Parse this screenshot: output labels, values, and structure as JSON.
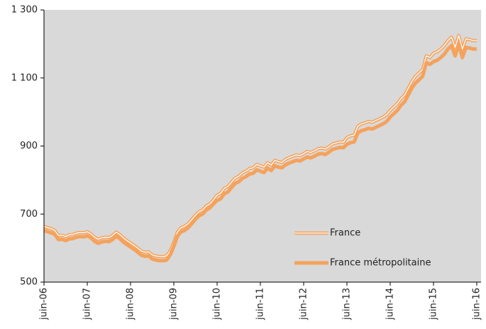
{
  "chart_data": {
    "type": "line",
    "categories": [
      "juin-06",
      null,
      null,
      null,
      null,
      null,
      null,
      null,
      null,
      null,
      null,
      null,
      "juin-07",
      null,
      null,
      null,
      null,
      null,
      null,
      null,
      null,
      null,
      null,
      null,
      "juin-08",
      null,
      null,
      null,
      null,
      null,
      null,
      null,
      null,
      null,
      null,
      null,
      "juin-09",
      null,
      null,
      null,
      null,
      null,
      null,
      null,
      null,
      null,
      null,
      null,
      "juin-10",
      null,
      null,
      null,
      null,
      null,
      null,
      null,
      null,
      null,
      null,
      null,
      "juin-11",
      null,
      null,
      null,
      null,
      null,
      null,
      null,
      null,
      null,
      null,
      null,
      "juin-12",
      null,
      null,
      null,
      null,
      null,
      null,
      null,
      null,
      null,
      null,
      null,
      "juin-13",
      null,
      null,
      null,
      null,
      null,
      null,
      null,
      null,
      null,
      null,
      null,
      "juin-14",
      null,
      null,
      null,
      null,
      null,
      null,
      null,
      null,
      null,
      null,
      null,
      "juin-15",
      null,
      null,
      null,
      null,
      null,
      null,
      null,
      null,
      null,
      null,
      null,
      "juin-16"
    ],
    "series": [
      {
        "name": "France",
        "color": "#f5a25d",
        "style": "double",
        "values": [
          664,
          660,
          657,
          652,
          637,
          638,
          634,
          639,
          640,
          644,
          646,
          645,
          648,
          642,
          632,
          626,
          630,
          632,
          631,
          637,
          647,
          640,
          630,
          622,
          615,
          608,
          600,
          591,
          588,
          589,
          580,
          577,
          575,
          575,
          577,
          592,
          617,
          647,
          660,
          664,
          672,
          684,
          697,
          707,
          712,
          724,
          730,
          742,
          756,
          761,
          776,
          781,
          794,
          806,
          811,
          821,
          826,
          834,
          836,
          846,
          842,
          838,
          851,
          844,
          858,
          854,
          852,
          861,
          866,
          870,
          874,
          872,
          878,
          884,
          881,
          886,
          892,
          894,
          891,
          898,
          906,
          909,
          912,
          911,
          925,
          930,
          932,
          958,
          965,
          968,
          972,
          970,
          975,
          980,
          985,
          992,
          1005,
          1015,
          1025,
          1040,
          1050,
          1070,
          1090,
          1105,
          1115,
          1125,
          1165,
          1160,
          1173,
          1177,
          1185,
          1195,
          1210,
          1220,
          1190,
          1225,
          1185,
          1215,
          1213,
          1210,
          1210
        ]
      },
      {
        "name": "France métropolitaine",
        "color": "#f5a25d",
        "style": "solid",
        "values": [
          652,
          648,
          645,
          640,
          625,
          626,
          622,
          627,
          628,
          632,
          634,
          633,
          636,
          630,
          620,
          614,
          618,
          620,
          619,
          625,
          635,
          628,
          618,
          610,
          603,
          596,
          588,
          579,
          576,
          577,
          568,
          565,
          563,
          563,
          565,
          580,
          605,
          635,
          648,
          652,
          660,
          672,
          685,
          695,
          700,
          712,
          718,
          730,
          740,
          745,
          760,
          765,
          778,
          790,
          795,
          805,
          810,
          818,
          820,
          830,
          826,
          822,
          835,
          828,
          842,
          838,
          836,
          845,
          850,
          854,
          858,
          856,
          862,
          868,
          865,
          870,
          876,
          878,
          875,
          882,
          890,
          893,
          896,
          895,
          905,
          910,
          912,
          938,
          945,
          948,
          952,
          950,
          955,
          960,
          965,
          972,
          985,
          995,
          1005,
          1020,
          1030,
          1050,
          1070,
          1085,
          1095,
          1105,
          1145,
          1140,
          1148,
          1152,
          1160,
          1170,
          1185,
          1195,
          1165,
          1200,
          1160,
          1190,
          1188,
          1185,
          1185
        ]
      }
    ],
    "ylim": [
      500,
      1300
    ],
    "yticks": [
      500,
      700,
      900,
      {
        "value": 1100,
        "label": "1 100"
      },
      {
        "value": 1300,
        "label": "1 300"
      }
    ],
    "plot_background": "#d9d9d9",
    "legend": "lower right"
  }
}
